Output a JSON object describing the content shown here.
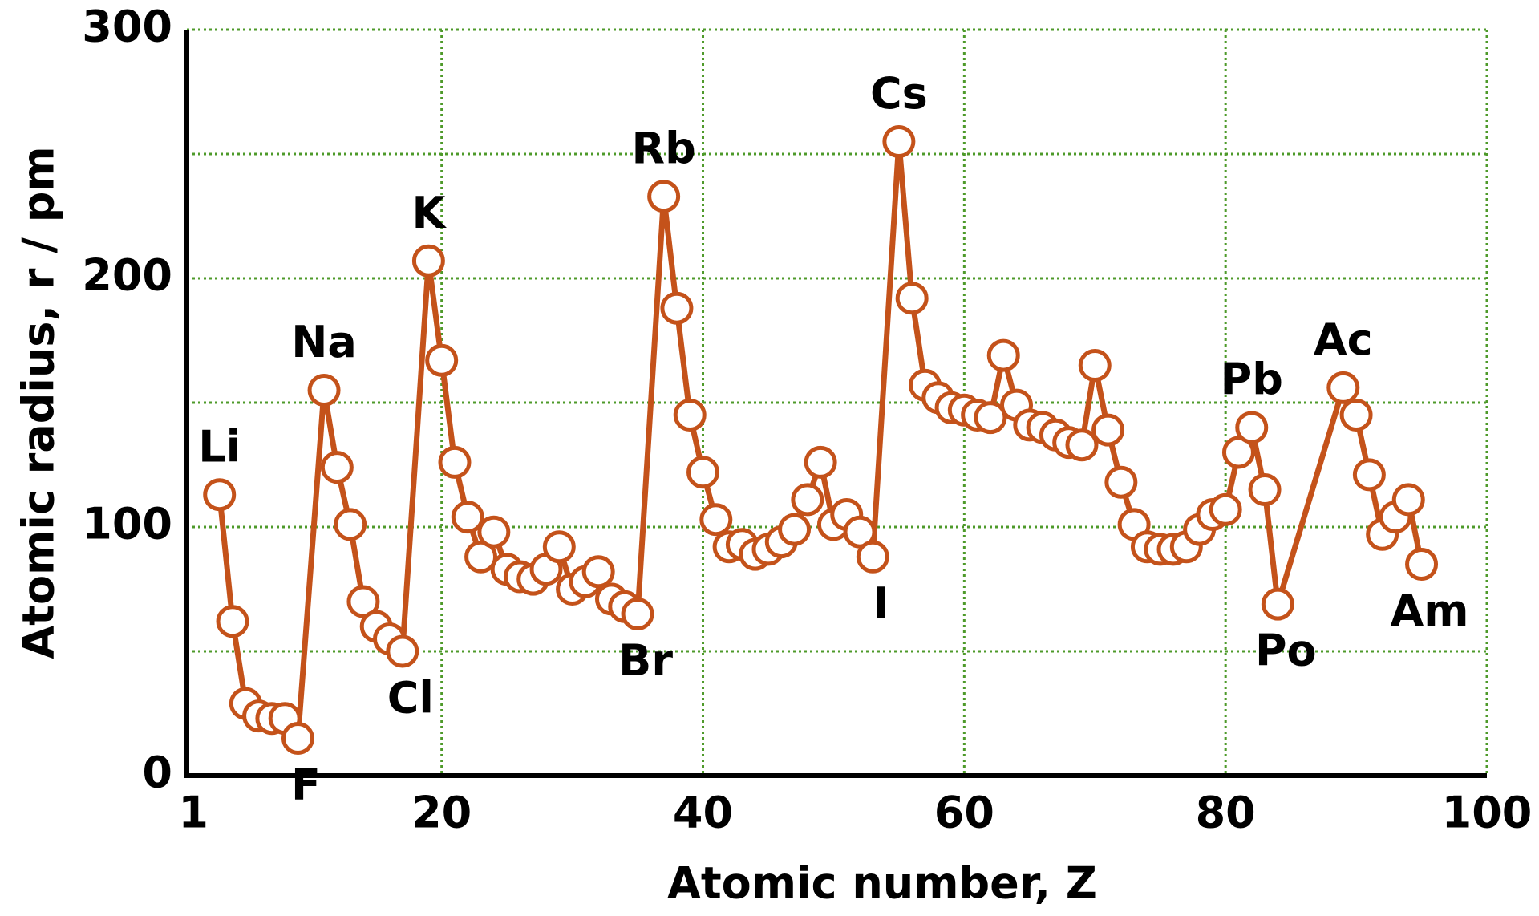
{
  "chart_data": {
    "type": "line",
    "xlabel": "Atomic number, Z",
    "ylabel": "Atomic radius, r / pm",
    "xlim": [
      0.5,
      100
    ],
    "xticks": [
      1,
      20,
      40,
      60,
      80,
      100
    ],
    "ylim": [
      0,
      300
    ],
    "yticks": [
      0,
      100,
      200,
      300
    ],
    "ygrid_minor": [
      50,
      150,
      250
    ],
    "grid": true,
    "series": [
      {
        "color": "#c4521a",
        "x": [
          3,
          4,
          5,
          6,
          7,
          8,
          9,
          11,
          12,
          13,
          14,
          15,
          16,
          17,
          19,
          20,
          21,
          22,
          23,
          24,
          25,
          26,
          27,
          28,
          29,
          30,
          31,
          32,
          33,
          34,
          35,
          37,
          38,
          39,
          40,
          41,
          42,
          43,
          44,
          45,
          46,
          47,
          48,
          49,
          50,
          51,
          52,
          53,
          55,
          56,
          57,
          58,
          59,
          60,
          61,
          62,
          63,
          64,
          65,
          66,
          67,
          68,
          69,
          70,
          71,
          72,
          73,
          74,
          75,
          76,
          77,
          78,
          79,
          80,
          81,
          82,
          83,
          84,
          89,
          90,
          91,
          92,
          93,
          94,
          95
        ],
        "values": [
          113,
          62,
          29,
          24,
          23,
          23,
          15,
          155,
          124,
          101,
          70,
          60,
          55,
          50,
          207,
          167,
          126,
          104,
          88,
          98,
          83,
          80,
          79,
          83,
          92,
          75,
          78,
          82,
          71,
          68,
          65,
          233,
          188,
          145,
          122,
          103,
          92,
          93,
          89,
          91,
          94,
          99,
          111,
          126,
          101,
          105,
          98,
          88,
          255,
          192,
          157,
          152,
          148,
          147,
          145,
          144,
          169,
          149,
          141,
          140,
          137,
          134,
          133,
          165,
          139,
          118,
          101,
          92,
          91,
          91,
          92,
          99,
          105,
          107,
          130,
          140,
          115,
          69,
          156,
          145,
          121,
          97,
          104,
          111,
          85
        ]
      }
    ],
    "annotations": [
      {
        "text": "Li",
        "x": 3
      },
      {
        "text": "F",
        "x": 9
      },
      {
        "text": "Na",
        "x": 11
      },
      {
        "text": "Cl",
        "x": 17
      },
      {
        "text": "K",
        "x": 19
      },
      {
        "text": "Br",
        "x": 35
      },
      {
        "text": "Rb",
        "x": 37
      },
      {
        "text": "I",
        "x": 53
      },
      {
        "text": "Cs",
        "x": 55
      },
      {
        "text": "Pb",
        "x": 82
      },
      {
        "text": "Po",
        "x": 84
      },
      {
        "text": "Ac",
        "x": 89
      },
      {
        "text": "Am",
        "x": 95
      }
    ]
  }
}
